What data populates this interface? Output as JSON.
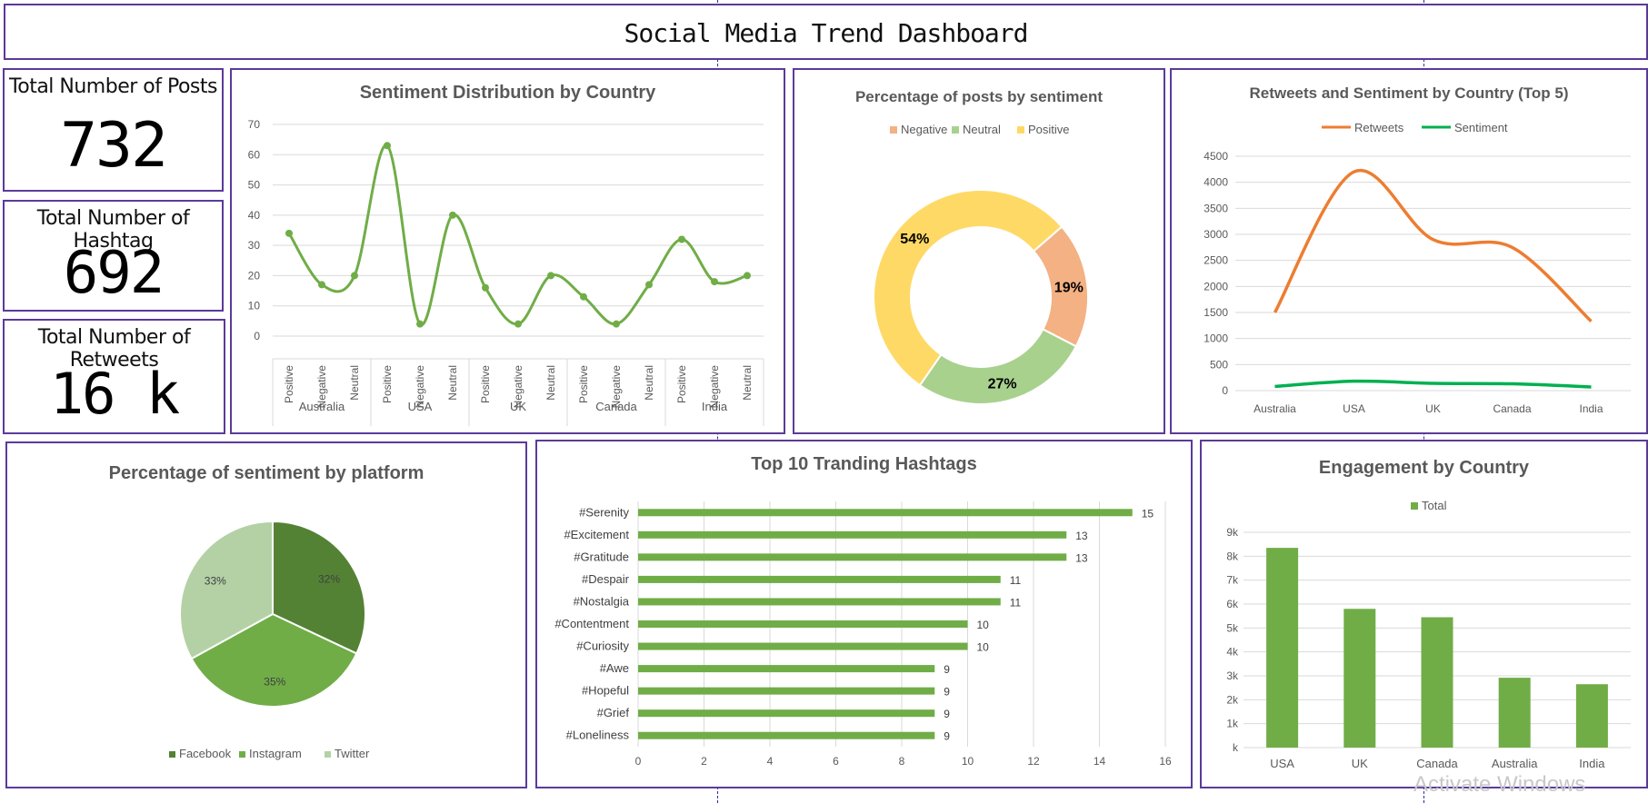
{
  "title": "Social Media Trend Dashboard",
  "kpis": {
    "posts": {
      "label": "Total Number of Posts",
      "value": "732"
    },
    "hashtags": {
      "label": "Total Number of Hashtag",
      "value": "692"
    },
    "retweets": {
      "label": "Total Number of Retweets",
      "value": "16 k"
    }
  },
  "watermark": "Activate Windows",
  "colors": {
    "border": "#5b3a9a",
    "green": "#70ad47",
    "orange": "#ed7d31",
    "bright_green": "#00b050",
    "neg": "#f4b183",
    "neu": "#a9d18e",
    "pos": "#ffd966"
  },
  "chart_data": [
    {
      "id": "sentiment_by_country",
      "type": "line",
      "title": "Sentiment Distribution by Country",
      "groups": [
        "Australia",
        "USA",
        "UK",
        "Canada",
        "India"
      ],
      "categories": [
        "Positive",
        "Negative",
        "Neutral",
        "Positive",
        "Negative",
        "Neutral",
        "Positive",
        "Negative",
        "Neutral",
        "Positive",
        "Negative",
        "Neutral",
        "Positive",
        "Negative",
        "Neutral"
      ],
      "values": [
        34,
        17,
        20,
        63,
        4,
        40,
        16,
        4,
        20,
        13,
        4,
        17,
        32,
        18,
        20
      ],
      "ylim": [
        0,
        70
      ],
      "yticks": [
        "0",
        "10",
        "20",
        "30",
        "40",
        "50",
        "60",
        "70"
      ],
      "smooth": true,
      "grid": true
    },
    {
      "id": "posts_by_sentiment",
      "type": "pie",
      "donut": true,
      "title": "Percentage of posts by sentiment",
      "labels": [
        "Negative",
        "Neutral",
        "Positive"
      ],
      "values": [
        19,
        27,
        54
      ],
      "value_labels": [
        "19%",
        "27%",
        "54%"
      ],
      "legend": "top"
    },
    {
      "id": "retweets_sentiment_top5",
      "type": "line",
      "title": "Retweets and Sentiment by Country (Top 5)",
      "categories": [
        "Australia",
        "USA",
        "UK",
        "Canada",
        "India"
      ],
      "series": [
        {
          "name": "Retweets",
          "values": [
            1500,
            4200,
            2900,
            2750,
            1330
          ]
        },
        {
          "name": "Sentiment",
          "values": [
            80,
            180,
            140,
            130,
            70
          ]
        }
      ],
      "ylim": [
        0,
        4500
      ],
      "yticks": [
        "0",
        "500",
        "1000",
        "1500",
        "2000",
        "2500",
        "3000",
        "3500",
        "4000",
        "4500"
      ],
      "smooth": true,
      "legend": "top"
    },
    {
      "id": "sentiment_by_platform",
      "type": "pie",
      "title": "Percentage of sentiment by platform",
      "labels": [
        "Facebook",
        "Instagram",
        "Twitter"
      ],
      "values": [
        32,
        35,
        33
      ],
      "value_labels": [
        "32%",
        "35%",
        "33%"
      ],
      "legend": "bottom"
    },
    {
      "id": "top10_hashtags",
      "type": "bar",
      "orientation": "horizontal",
      "title": "Top 10 Tranding Hashtags",
      "categories": [
        "#Serenity",
        "#Excitement",
        "#Gratitude",
        "#Despair",
        "#Nostalgia",
        "#Contentment",
        "#Curiosity",
        "#Awe",
        "#Hopeful",
        "#Grief",
        "#Loneliness"
      ],
      "values": [
        15,
        13,
        13,
        11,
        11,
        10,
        10,
        9,
        9,
        9,
        9
      ],
      "value_labels": [
        "15",
        "13",
        "13",
        "11",
        "11",
        "10",
        "10",
        "9",
        "9",
        "9",
        "9"
      ],
      "xlim": [
        0,
        16
      ],
      "xticks": [
        "0",
        "2",
        "4",
        "6",
        "8",
        "10",
        "12",
        "14",
        "16"
      ],
      "grid": true
    },
    {
      "id": "engagement_by_country",
      "type": "bar",
      "title": "Engagement by Country",
      "categories": [
        "USA",
        "UK",
        "Canada",
        "Australia",
        "India"
      ],
      "series": [
        {
          "name": "Total",
          "values": [
            8350,
            5800,
            5450,
            2920,
            2650
          ]
        }
      ],
      "ylim": [
        0,
        9000
      ],
      "yticks": [
        "k",
        "1k",
        "2k",
        "3k",
        "4k",
        "5k",
        "6k",
        "7k",
        "8k",
        "9k"
      ],
      "legend": "top",
      "grid": true
    }
  ]
}
